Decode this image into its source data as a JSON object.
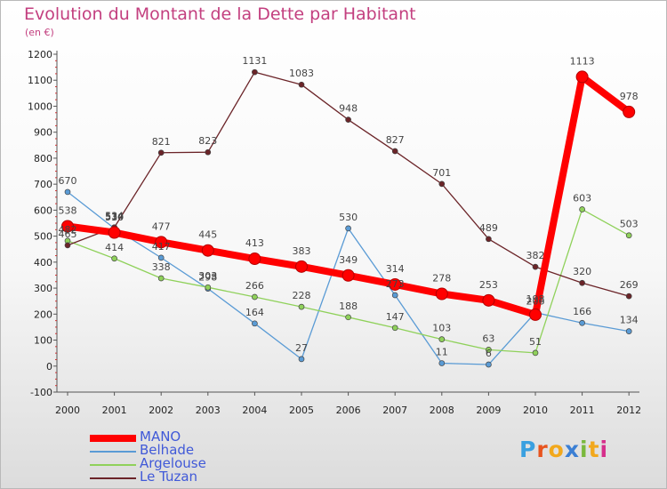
{
  "chart_data": {
    "type": "line",
    "title": "Evolution du Montant de la Dette par Habitant",
    "subtitle": "(en €)",
    "x": [
      "2000",
      "2001",
      "2002",
      "2003",
      "2004",
      "2005",
      "2006",
      "2007",
      "2008",
      "2009",
      "2010",
      "2011",
      "2012"
    ],
    "ylim": [
      -100,
      1200
    ],
    "yticks": [
      -100,
      0,
      100,
      200,
      300,
      400,
      500,
      600,
      700,
      800,
      900,
      1000,
      1100,
      1200
    ],
    "grid": false,
    "legend_position": "bottom-left",
    "series": [
      {
        "name": "MANO",
        "color": "#ff0000",
        "values": [
          538,
          514,
          477,
          445,
          413,
          383,
          349,
          314,
          278,
          253,
          198,
          1113,
          978
        ],
        "emphasis": true
      },
      {
        "name": "Belhade",
        "color": "#5a9bd5",
        "values": [
          670,
          530,
          417,
          298,
          164,
          27,
          530,
          273,
          11,
          6,
          206,
          166,
          134
        ]
      },
      {
        "name": "Argelouse",
        "color": "#8fd15a",
        "values": [
          482,
          414,
          338,
          303,
          266,
          228,
          188,
          147,
          103,
          63,
          51,
          603,
          503
        ]
      },
      {
        "name": "Le Tuzan",
        "color": "#6b2428",
        "values": [
          465,
          534,
          821,
          823,
          1131,
          1083,
          948,
          827,
          701,
          489,
          382,
          320,
          269
        ]
      }
    ]
  },
  "logo": {
    "letters": [
      "P",
      "r",
      "o",
      "x",
      "i",
      "t",
      "i"
    ],
    "colors": [
      "#3aa0e0",
      "#e8541e",
      "#f2a81c",
      "#3b7fd4",
      "#7ab83d",
      "#f2a81c",
      "#d62f8b"
    ]
  }
}
